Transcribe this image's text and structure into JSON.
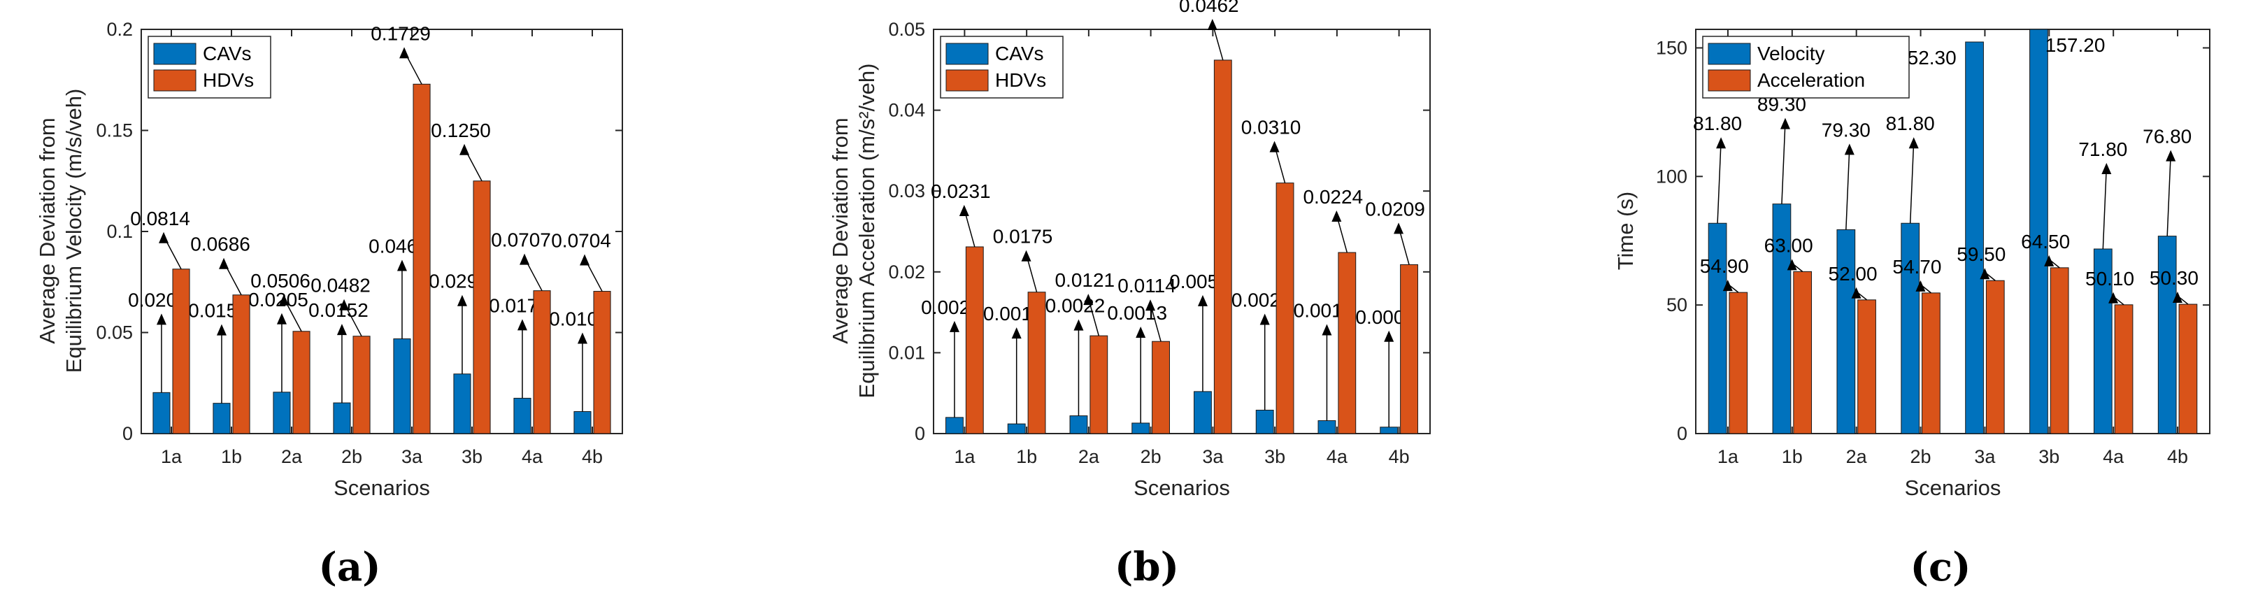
{
  "colors": {
    "series1": "#0072bd",
    "series2": "#d95319",
    "axis": "#262626"
  },
  "captions": [
    "(a)",
    "(b)",
    "(c)"
  ],
  "chart_data": [
    {
      "type": "bar",
      "categories": [
        "1a",
        "1b",
        "2a",
        "2b",
        "3a",
        "3b",
        "4a",
        "4b"
      ],
      "series": [
        {
          "name": "CAVs",
          "values": [
            0.0203,
            0.015,
            0.0205,
            0.0152,
            0.0469,
            0.0295,
            0.0175,
            0.0109
          ],
          "labels": [
            "0.0203",
            "0.0150",
            "0.0205",
            "0.0152",
            "0.0469",
            "0.0295",
            "0.0175",
            "0.0109"
          ]
        },
        {
          "name": "HDVs",
          "values": [
            0.0814,
            0.0686,
            0.0506,
            0.0482,
            0.1729,
            0.125,
            0.0707,
            0.0704
          ],
          "labels": [
            "0.0814",
            "0.0686",
            "0.0506",
            "0.0482",
            "0.1729",
            "0.1250",
            "0.0707",
            "0.0704"
          ]
        }
      ],
      "ylim": [
        0,
        0.2
      ],
      "yticks": [
        0,
        0.05,
        0.1,
        0.15,
        0.2
      ],
      "ytick_labels": [
        "0",
        "0.05",
        "0.1",
        "0.15",
        "0.2"
      ],
      "xlabel": "Scenarios",
      "ylabel": [
        "Average Deviation from",
        "Equilibrium Velocity (m/s/veh)"
      ],
      "legend": "top-left",
      "grid": false
    },
    {
      "type": "bar",
      "categories": [
        "1a",
        "1b",
        "2a",
        "2b",
        "3a",
        "3b",
        "4a",
        "4b"
      ],
      "series": [
        {
          "name": "CAVs",
          "values": [
            0.002,
            0.0012,
            0.0022,
            0.0013,
            0.0052,
            0.0029,
            0.0016,
            0.0008
          ],
          "labels": [
            "0.0020",
            "0.0012",
            "0.0022",
            "0.0013",
            "0.0052",
            "0.0029",
            "0.0016",
            "0.0008"
          ]
        },
        {
          "name": "HDVs",
          "values": [
            0.0231,
            0.0175,
            0.0121,
            0.0114,
            0.0462,
            0.031,
            0.0224,
            0.0209
          ],
          "labels": [
            "0.0231",
            "0.0175",
            "0.0121",
            "0.0114",
            "0.0462",
            "0.0310",
            "0.0224",
            "0.0209"
          ]
        }
      ],
      "ylim": [
        0,
        0.05
      ],
      "yticks": [
        0,
        0.01,
        0.02,
        0.03,
        0.04,
        0.05
      ],
      "ytick_labels": [
        "0",
        "0.01",
        "0.02",
        "0.03",
        "0.04",
        "0.05"
      ],
      "xlabel": "Scenarios",
      "ylabel": [
        "Average Deviation from",
        "Equilibrium Acceleration (m/s²/veh)"
      ],
      "legend": "top-left",
      "grid": false
    },
    {
      "type": "bar",
      "categories": [
        "1a",
        "1b",
        "2a",
        "2b",
        "3a",
        "3b",
        "4a",
        "4b"
      ],
      "series": [
        {
          "name": "Velocity",
          "values": [
            81.8,
            89.3,
            79.3,
            81.8,
            152.3,
            157.2,
            71.8,
            76.8
          ],
          "labels": [
            "81.80",
            "89.30",
            "79.30",
            "81.80",
            "152.30",
            "157.20",
            "71.80",
            "76.80"
          ]
        },
        {
          "name": "Acceleration",
          "values": [
            54.9,
            63.0,
            52.0,
            54.7,
            59.5,
            64.5,
            50.1,
            50.3
          ],
          "labels": [
            "54.90",
            "63.00",
            "52.00",
            "54.70",
            "59.50",
            "64.50",
            "50.10",
            "50.30"
          ]
        }
      ],
      "ylim": [
        0,
        157.2
      ],
      "yticks": [
        0,
        50,
        100,
        150
      ],
      "ytick_labels": [
        "0",
        "50",
        "100",
        "150"
      ],
      "xlabel": "Scenarios",
      "ylabel": [
        "Time (s)"
      ],
      "legend": "top-left",
      "grid": false
    }
  ]
}
